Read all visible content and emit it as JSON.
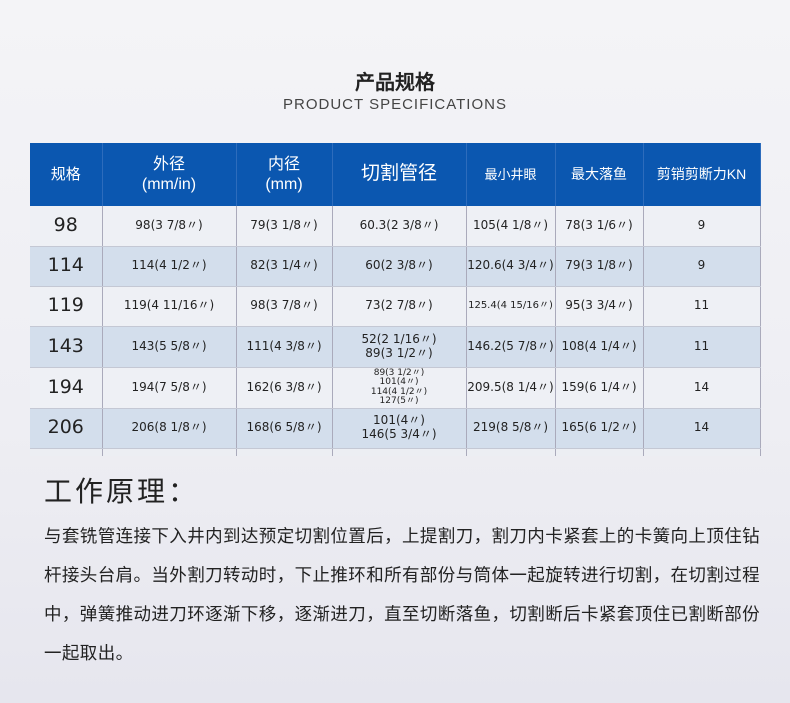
{
  "title": "产品规格",
  "subtitle": "PRODUCT SPECIFICATIONS",
  "table": {
    "headers": [
      "规格",
      "外径\n(mm/in)",
      "内径\n(mm)",
      "切割管径",
      "最小井眼",
      "最大落鱼",
      "剪销剪断力KN"
    ],
    "rows": [
      [
        "98",
        "98(3 7/8〃)",
        "79(3 1/8〃)",
        "60.3(2 3/8〃)",
        "105(4 1/8〃)",
        "78(3 1/6〃)",
        "9"
      ],
      [
        "114",
        "114(4 1/2〃)",
        "82(3 1/4〃)",
        "60(2 3/8〃)",
        "120.6(4 3/4〃)",
        "79(3 1/8〃)",
        "9"
      ],
      [
        "119",
        "119(4 11/16〃)",
        "98(3 7/8〃)",
        "73(2 7/8〃)",
        "125.4(4 15/16〃)",
        "95(3 3/4〃)",
        "11"
      ],
      [
        "143",
        "143(5 5/8〃)",
        "111(4 3/8〃)",
        "52(2 1/16〃)\n89(3 1/2〃)",
        "146.2(5 7/8〃)",
        "108(4 1/4〃)",
        "11"
      ],
      [
        "194",
        "194(7 5/8〃)",
        "162(6 3/8〃)",
        "89(3 1/2〃)\n101(4〃)\n114(4 1/2〃)\n127(5〃)",
        "209.5(8 1/4〃)",
        "159(6 1/4〃)",
        "14"
      ],
      [
        "206",
        "206(8 1/8〃)",
        "168(6 5/8〃)",
        "101(4〃)\n146(5 3/4〃)",
        "219(8 5/8〃)",
        "165(6 1/2〃)",
        "14"
      ]
    ]
  },
  "principle": {
    "heading": "工作原理：",
    "text": "与套铣管连接下入井内到达预定切割位置后，上提割刀，割刀内卡紧套上的卡簧向上顶住钻杆接头台肩。当外割刀转动时，下止推环和所有部份与筒体一起旋转进行切割，在切割过程中，弹簧推动进刀环逐渐下移，逐渐进刀，直至切断落鱼，切割断后卡紧套顶住已割断部份一起取出。"
  },
  "colors": {
    "header": "#0b57b0",
    "row_alt": "#d3deec"
  }
}
